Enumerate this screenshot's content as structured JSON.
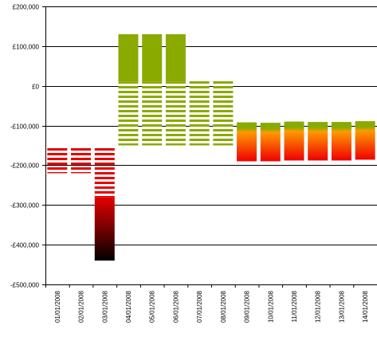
{
  "chart_data": {
    "type": "bar",
    "title": "",
    "xlabel": "",
    "ylabel": "",
    "ylim": [
      -500000,
      200000
    ],
    "grid": true,
    "legend": "none",
    "y_ticks": [
      {
        "value": 200000,
        "label": "£200,000"
      },
      {
        "value": 100000,
        "label": "£100,000"
      },
      {
        "value": 0,
        "label": "£0"
      },
      {
        "value": -100000,
        "label": "-£100,000"
      },
      {
        "value": -200000,
        "label": "-£200,000"
      },
      {
        "value": -300000,
        "label": "-£300,000"
      },
      {
        "value": -400000,
        "label": "-£400,000"
      },
      {
        "value": -500000,
        "label": "-£500,000"
      }
    ],
    "categories": [
      "01/01/2008",
      "02/01/2008",
      "03/01/2008",
      "04/01/2008",
      "05/01/2008",
      "06/01/2008",
      "07/01/2008",
      "08/01/2008",
      "09/01/2008",
      "10/01/2008",
      "11/01/2008",
      "12/01/2008",
      "13/01/2008",
      "14/01/2008"
    ],
    "striped_range": [
      [
        -155000,
        -220000
      ],
      [
        -155000,
        -220000
      ],
      [
        -155000,
        -280000
      ],
      [
        -150000,
        10000
      ],
      [
        -150000,
        10000
      ],
      [
        -150000,
        10000
      ],
      [
        -150000,
        15000
      ],
      [
        -150000,
        15000
      ],
      [
        -100000,
        -100000
      ],
      [
        -100000,
        -100000
      ],
      [
        -100000,
        -100000
      ],
      [
        -100000,
        -100000
      ],
      [
        -100000,
        -100000
      ],
      [
        -100000,
        -100000
      ]
    ],
    "solid_range": [
      [
        null,
        null
      ],
      [
        null,
        null
      ],
      [
        -280000,
        -440000
      ],
      [
        10000,
        130000
      ],
      [
        10000,
        130000
      ],
      [
        10000,
        130000
      ],
      [
        null,
        null
      ],
      [
        null,
        null
      ],
      [
        -92000,
        -190000
      ],
      [
        -93000,
        -190000
      ],
      [
        -90000,
        -188000
      ],
      [
        -91000,
        -188000
      ],
      [
        -91000,
        -188000
      ],
      [
        -89000,
        -186000
      ]
    ],
    "colors": {
      "red": "#e60000",
      "green": "#8aaa00",
      "black": "#000000",
      "orange": "#ff8800",
      "axis": "#000000",
      "grid": "#000000"
    }
  }
}
